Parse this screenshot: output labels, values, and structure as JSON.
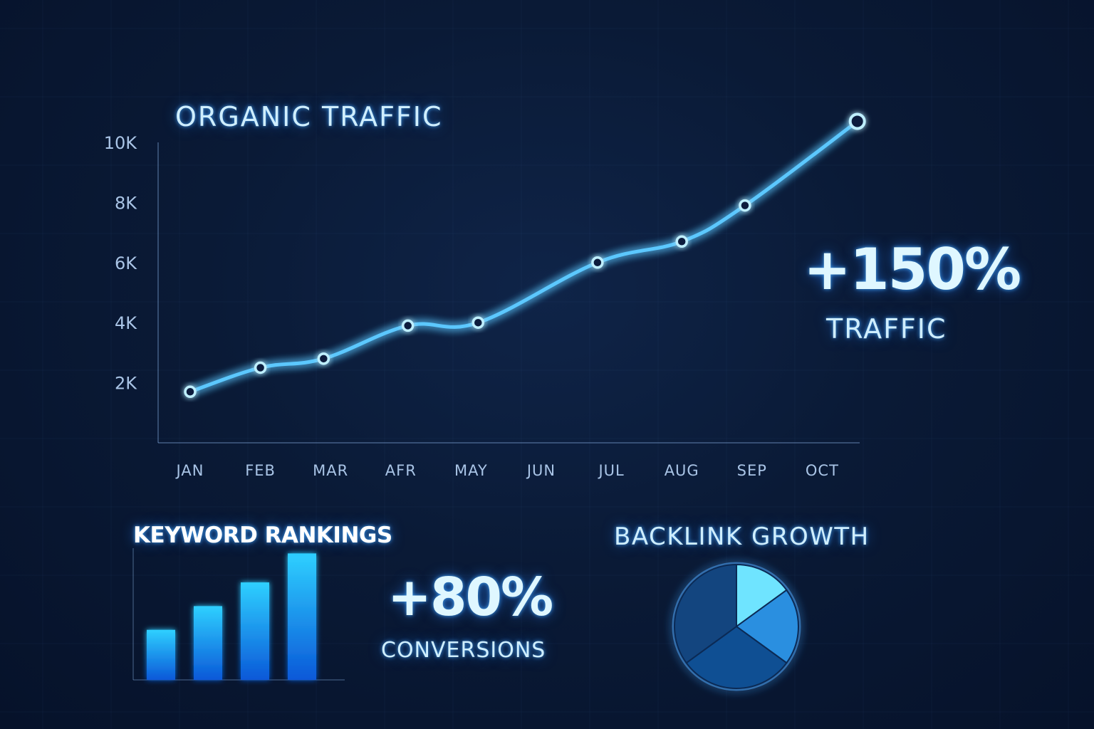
{
  "main_chart": {
    "title": "ORGANIC TRAFFIC"
  },
  "traffic_stat": {
    "value": "+150%",
    "label": "TRAFFIC"
  },
  "keyword": {
    "title": "KEYWORD RANKINGS"
  },
  "conversions": {
    "value": "+80%",
    "label": "CONVERSIONS"
  },
  "backlink": {
    "title": "BACKLINK GROWTH"
  },
  "colors": {
    "line": "#5cc8ff",
    "text": "#cfeeff",
    "axis_label": "#a9c4e6",
    "bar_top": "#2fd0ff",
    "bar_bottom": "#0a58d8",
    "pie_light": "#6fe4ff",
    "pie_mid": "#2a8fe0",
    "pie_dark": "#0f4f93"
  },
  "chart_data": [
    {
      "type": "line",
      "title": "ORGANIC TRAFFIC",
      "categories": [
        "JAN",
        "FEB",
        "MAR",
        "AFR",
        "MAY",
        "JUN",
        "JUL",
        "AUG",
        "SEP",
        "OCT"
      ],
      "y_ticks": [
        "2K",
        "4K",
        "6K",
        "8K",
        "10K"
      ],
      "y_tick_values": [
        2000,
        4000,
        6000,
        8000,
        10000
      ],
      "ylim": [
        0,
        10000
      ],
      "grid": false,
      "series": [
        {
          "points": [
            {
              "x": 0.0,
              "y": 1700
            },
            {
              "x": 1.0,
              "y": 2500
            },
            {
              "x": 1.9,
              "y": 2800
            },
            {
              "x": 3.1,
              "y": 3900
            },
            {
              "x": 4.1,
              "y": 4000
            },
            {
              "x": 5.8,
              "y": 6000
            },
            {
              "x": 7.0,
              "y": 6700
            },
            {
              "x": 7.9,
              "y": 7900
            },
            {
              "x": 9.5,
              "y": 10700
            }
          ],
          "markers": [
            {
              "x": 0.0,
              "y": 1700
            },
            {
              "x": 1.0,
              "y": 2500
            },
            {
              "x": 1.9,
              "y": 2800
            },
            {
              "x": 3.1,
              "y": 3900
            },
            {
              "x": 4.1,
              "y": 4000
            },
            {
              "x": 5.8,
              "y": 6000
            },
            {
              "x": 7.0,
              "y": 6700
            },
            {
              "x": 7.9,
              "y": 7900
            },
            {
              "x": 9.5,
              "y": 10700
            }
          ]
        }
      ]
    },
    {
      "type": "bar",
      "title": "KEYWORD RANKINGS",
      "values": [
        38,
        56,
        74,
        96
      ],
      "ylim": [
        0,
        100
      ]
    },
    {
      "type": "pie",
      "title": "BACKLINK GROWTH",
      "slices": [
        {
          "value": 15,
          "shade": "light"
        },
        {
          "value": 20,
          "shade": "mid"
        },
        {
          "value": 30,
          "shade": "dark"
        },
        {
          "value": 35,
          "shade": "dark"
        }
      ]
    }
  ]
}
